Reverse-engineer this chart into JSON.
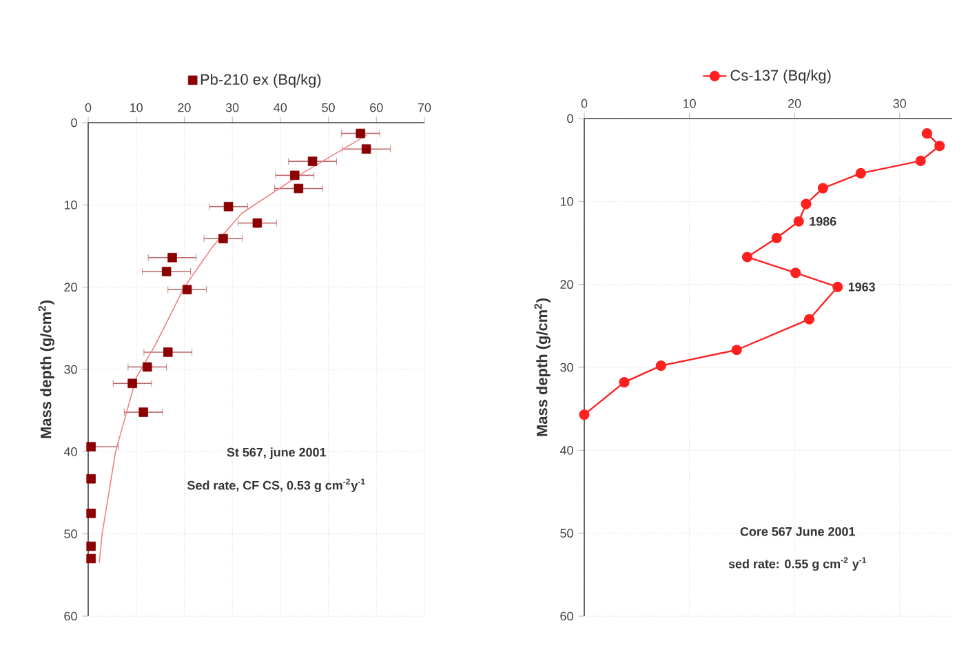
{
  "chart_data": [
    {
      "type": "scatter",
      "ylabel": "Mass depth (g/cm$^{2}$)",
      "xlim": [
        0,
        70
      ],
      "xticks": [
        0,
        10,
        20,
        30,
        40,
        50,
        60,
        70
      ],
      "ylim": [
        60,
        0
      ],
      "yticks": [
        0,
        10,
        20,
        30,
        40,
        50,
        60
      ],
      "grid": true,
      "legend": "top",
      "series": [
        {
          "name": "Pb-210 ex (Bq/kg)",
          "color": "#8b0000",
          "marker": "square",
          "x": [
            56.7,
            57.9,
            46.7,
            43,
            43.8,
            29.2,
            35.2,
            28.1,
            17.5,
            16.3,
            20.6,
            16.6,
            12.3,
            9.2,
            11.5,
            0.6,
            0.6,
            0.6,
            0.6,
            0.6
          ],
          "values": [
            1.3,
            3.2,
            4.7,
            6.4,
            8,
            10.2,
            12.2,
            14.1,
            16.4,
            18.1,
            20.3,
            27.9,
            29.7,
            31.7,
            35.2,
            39.4,
            43.3,
            47.5,
            51.5,
            53
          ],
          "xerrors": [
            4,
            5,
            5,
            4,
            5,
            4,
            4,
            4,
            5,
            5,
            4,
            5,
            4,
            4,
            4,
            [
              0.6,
              6.3
            ],
            null,
            null,
            null,
            null
          ]
        },
        {
          "type": "line",
          "color": "#f08080",
          "marker": "none",
          "line_style": "solid",
          "x": [
            58,
            45,
            32,
            26,
            20,
            14,
            10,
            5.7,
            2.9,
            2.3
          ],
          "values": [
            1.5,
            6,
            11,
            15,
            20,
            27,
            31,
            40,
            50,
            53.5
          ]
        }
      ],
      "annotations": [
        "St 567, june 2001",
        "Sed rate, CF CS, 0.53 g cm$^{-2}$y$^{-1}$"
      ]
    },
    {
      "type": "line",
      "ylabel": "Mass depth (g/cm$^{2}$)",
      "xlim": [
        0,
        35
      ],
      "xticks": [
        0,
        10,
        20,
        30
      ],
      "ylim": [
        60,
        0
      ],
      "yticks": [
        0,
        10,
        20,
        30,
        40,
        50,
        60
      ],
      "grid": true,
      "legend": "top",
      "marker": "circle",
      "line_style": "solid",
      "series": [
        {
          "name": "Cs-137 (Bq/kg)",
          "color": "#ff2020",
          "x": [
            32.6,
            33.8,
            32,
            26.3,
            22.7,
            21.1,
            20.4,
            18.3,
            15.5,
            20.1,
            24.1,
            21.4,
            14.5,
            7.3,
            3.8,
            0
          ],
          "values": [
            1.8,
            3.3,
            5.1,
            6.6,
            8.4,
            10.3,
            12.4,
            14.4,
            16.7,
            18.6,
            20.3,
            24.2,
            27.9,
            29.8,
            31.8,
            35.7
          ]
        }
      ],
      "annotations": [
        {
          "text": "1986",
          "x": 20.4,
          "y": 12.4
        },
        {
          "text": "1963",
          "x": 24.1,
          "y": 20.3
        },
        "Core 567 June 2001",
        "sed rate: 0.55 g cm$^{-2}$ y$^{-1}$"
      ]
    }
  ]
}
